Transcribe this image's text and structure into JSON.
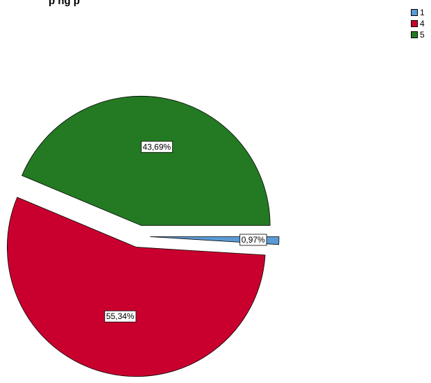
{
  "chart_data": {
    "type": "pie",
    "title": "p   ng    p",
    "categories": [
      "1",
      "4",
      "5"
    ],
    "values": [
      0.97,
      55.34,
      43.69
    ],
    "labels": [
      "0,97%",
      "55,34%",
      "43,69%"
    ],
    "exploded": [
      true,
      true,
      true
    ],
    "legend": "top-right",
    "colors": [
      "#5b9bd5",
      "#c9002e",
      "#237a22"
    ]
  }
}
